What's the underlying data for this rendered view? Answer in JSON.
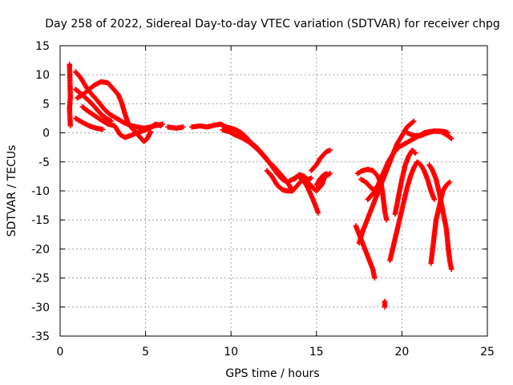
{
  "chart_data": {
    "type": "scatter",
    "title": "Day 258 of 2022, Sidereal Day-to-day VTEC variation (SDTVAR) for receiver chpg",
    "xlabel": "GPS time / hours",
    "ylabel": "SDTVAR / TECUs",
    "xlim": [
      0,
      25
    ],
    "ylim": [
      -35,
      15
    ],
    "xticks": [
      0,
      5,
      10,
      15,
      20,
      25
    ],
    "yticks": [
      15,
      10,
      5,
      0,
      -5,
      -10,
      -15,
      -20,
      -25,
      -30,
      -35
    ],
    "grid": true,
    "marker": "+",
    "color": "#ff0000",
    "series": [
      {
        "name": "s1",
        "points": [
          [
            0.55,
            11.8
          ],
          [
            0.6,
            6.2
          ],
          [
            0.55,
            4.2
          ],
          [
            0.6,
            1.2
          ]
        ]
      },
      {
        "name": "s2",
        "points": [
          [
            0.9,
            10.5
          ],
          [
            1.2,
            9.5
          ],
          [
            1.5,
            8
          ],
          [
            1.8,
            6.8
          ],
          [
            2.2,
            5.5
          ],
          [
            2.6,
            4
          ],
          [
            2.9,
            3.2
          ],
          [
            3.3,
            2.5
          ],
          [
            3.7,
            1.8
          ],
          [
            4.1,
            1.3
          ],
          [
            4.5,
            1.0
          ],
          [
            4.9,
            0.8
          ],
          [
            5.3,
            1.0
          ],
          [
            5.6,
            1.5
          ],
          [
            5.9,
            1.2
          ]
        ]
      },
      {
        "name": "s3",
        "points": [
          [
            0.9,
            7.5
          ],
          [
            1.2,
            6.8
          ],
          [
            1.5,
            6
          ],
          [
            1.8,
            5.2
          ],
          [
            2.1,
            4.2
          ],
          [
            2.4,
            3.2
          ],
          [
            2.7,
            2.5
          ],
          [
            3.0,
            2.0
          ]
        ]
      },
      {
        "name": "s4",
        "points": [
          [
            1.0,
            6.0
          ],
          [
            1.3,
            6.5
          ],
          [
            1.7,
            7.5
          ],
          [
            2.0,
            8.2
          ],
          [
            2.4,
            8.8
          ],
          [
            2.8,
            8.6
          ],
          [
            3.1,
            7.6
          ],
          [
            3.4,
            6.6
          ],
          [
            3.6,
            5.2
          ],
          [
            3.8,
            3.2
          ],
          [
            4.0,
            1.5
          ],
          [
            4.3,
            0.5
          ],
          [
            4.6,
            -0.5
          ],
          [
            4.9,
            -1.5
          ],
          [
            5.1,
            -1.0
          ],
          [
            5.3,
            0.2
          ]
        ]
      },
      {
        "name": "s5",
        "points": [
          [
            0.9,
            2.5
          ],
          [
            1.3,
            1.8
          ],
          [
            1.7,
            1.2
          ],
          [
            2.1,
            0.8
          ],
          [
            2.5,
            0.6
          ]
        ]
      },
      {
        "name": "s6",
        "points": [
          [
            1.3,
            4.5
          ],
          [
            1.6,
            3.8
          ],
          [
            2.0,
            3.0
          ],
          [
            2.4,
            2.2
          ],
          [
            2.8,
            1.5
          ],
          [
            3.2,
            1.2
          ],
          [
            3.5,
            -0.3
          ],
          [
            3.8,
            -0.8
          ],
          [
            4.1,
            -0.5
          ],
          [
            4.5,
            0.0
          ],
          [
            5.0,
            0.5
          ],
          [
            5.5,
            1.2
          ],
          [
            6.0,
            1.5
          ]
        ]
      },
      {
        "name": "s7",
        "points": [
          [
            6.3,
            1.0
          ],
          [
            6.8,
            0.8
          ],
          [
            7.2,
            1.0
          ]
        ]
      },
      {
        "name": "s8",
        "points": [
          [
            7.7,
            1.0
          ],
          [
            8.2,
            1.2
          ],
          [
            8.6,
            1.0
          ],
          [
            9.0,
            1.3
          ],
          [
            9.4,
            1.5
          ],
          [
            9.7,
            1.0
          ],
          [
            10.0,
            0.8
          ],
          [
            10.3,
            0.5
          ],
          [
            10.6,
            0.0
          ],
          [
            10.9,
            -0.8
          ],
          [
            11.2,
            -1.8
          ],
          [
            11.5,
            -2.5
          ],
          [
            11.8,
            -3.5
          ],
          [
            12.1,
            -4.5
          ],
          [
            12.4,
            -5.8
          ],
          [
            12.7,
            -7.0
          ],
          [
            13.0,
            -8.0
          ],
          [
            13.3,
            -8.5
          ],
          [
            13.6,
            -8.0
          ],
          [
            13.9,
            -7.5
          ],
          [
            14.2,
            -7.8
          ],
          [
            14.5,
            -8.0
          ],
          [
            14.7,
            -7.8
          ]
        ]
      },
      {
        "name": "s9",
        "points": [
          [
            9.5,
            0.5
          ],
          [
            9.9,
            0.2
          ],
          [
            10.2,
            -0.3
          ],
          [
            10.6,
            -0.8
          ],
          [
            11.0,
            -1.5
          ],
          [
            11.3,
            -2.2
          ],
          [
            11.6,
            -3.0
          ],
          [
            11.9,
            -4.0
          ],
          [
            12.2,
            -5.0
          ],
          [
            12.5,
            -5.8
          ],
          [
            12.8,
            -6.8
          ],
          [
            13.1,
            -7.8
          ],
          [
            13.4,
            -9.0
          ],
          [
            13.6,
            -10.0
          ]
        ]
      },
      {
        "name": "s10",
        "points": [
          [
            12.1,
            -6.5
          ],
          [
            12.4,
            -7.5
          ],
          [
            12.7,
            -9.0
          ],
          [
            13.0,
            -9.8
          ],
          [
            13.3,
            -10.0
          ],
          [
            13.6,
            -10.0
          ],
          [
            13.9,
            -9.0
          ],
          [
            14.2,
            -8.0
          ],
          [
            14.5,
            -9.5
          ],
          [
            14.8,
            -11.5
          ],
          [
            15.0,
            -13.0
          ],
          [
            15.1,
            -13.8
          ]
        ]
      },
      {
        "name": "s11",
        "points": [
          [
            13.7,
            -8.0
          ],
          [
            14.0,
            -7.2
          ],
          [
            14.3,
            -7.5
          ],
          [
            14.5,
            -8.5
          ],
          [
            14.8,
            -9.5
          ],
          [
            15.0,
            -10.0
          ],
          [
            15.3,
            -9.0
          ],
          [
            15.5,
            -7.5
          ],
          [
            15.7,
            -7.2
          ],
          [
            15.8,
            -7.0
          ]
        ]
      },
      {
        "name": "s12",
        "points": [
          [
            14.7,
            -6.5
          ],
          [
            15.0,
            -5.5
          ],
          [
            15.2,
            -4.5
          ],
          [
            15.4,
            -3.8
          ],
          [
            15.6,
            -3.2
          ],
          [
            15.8,
            -3.0
          ]
        ]
      },
      {
        "name": "s13",
        "points": [
          [
            15.0,
            -9.0
          ],
          [
            15.2,
            -8.0
          ],
          [
            15.4,
            -7.3
          ],
          [
            15.6,
            -7.0
          ]
        ]
      },
      {
        "name": "s14",
        "points": [
          [
            17.3,
            -16.0
          ],
          [
            17.5,
            -17.5
          ],
          [
            17.7,
            -19.0
          ],
          [
            17.9,
            -20.5
          ],
          [
            18.1,
            -22.0
          ],
          [
            18.3,
            -23.5
          ],
          [
            18.4,
            -25.0
          ]
        ]
      },
      {
        "name": "s15",
        "points": [
          [
            17.4,
            -7.0
          ],
          [
            17.7,
            -6.5
          ],
          [
            18.0,
            -6.3
          ],
          [
            18.3,
            -6.5
          ],
          [
            18.6,
            -7.5
          ],
          [
            18.8,
            -9.0
          ],
          [
            18.9,
            -11.0
          ],
          [
            19.0,
            -13.5
          ],
          [
            19.1,
            -15.0
          ]
        ]
      },
      {
        "name": "s16",
        "points": [
          [
            17.5,
            -19.0
          ],
          [
            17.7,
            -17.0
          ],
          [
            17.9,
            -15.5
          ],
          [
            18.1,
            -14.0
          ],
          [
            18.3,
            -12.5
          ],
          [
            18.5,
            -11.0
          ],
          [
            18.7,
            -9.5
          ],
          [
            18.9,
            -8.0
          ],
          [
            19.1,
            -6.5
          ],
          [
            19.3,
            -5.0
          ],
          [
            19.5,
            -3.5
          ],
          [
            19.7,
            -2.0
          ],
          [
            19.9,
            -1.0
          ],
          [
            20.1,
            0.0
          ],
          [
            20.3,
            1.0
          ],
          [
            20.5,
            1.5
          ],
          [
            20.7,
            2.0
          ]
        ]
      },
      {
        "name": "s17",
        "points": [
          [
            17.6,
            -8.0
          ],
          [
            17.9,
            -8.5
          ],
          [
            18.2,
            -9.5
          ],
          [
            18.5,
            -10.0
          ],
          [
            18.8,
            -9.5
          ]
        ]
      },
      {
        "name": "s18",
        "points": [
          [
            18.0,
            -11.5
          ],
          [
            18.3,
            -10.5
          ],
          [
            18.6,
            -9.0
          ],
          [
            18.9,
            -7.0
          ],
          [
            19.2,
            -5.0
          ],
          [
            19.5,
            -3.5
          ],
          [
            19.8,
            -2.5
          ],
          [
            20.1,
            -2.0
          ],
          [
            20.4,
            -1.5
          ],
          [
            20.7,
            -1.0
          ],
          [
            21.0,
            -0.5
          ],
          [
            21.3,
            0.0
          ],
          [
            21.6,
            0.2
          ],
          [
            21.9,
            0.3
          ],
          [
            22.2,
            0.3
          ],
          [
            22.5,
            0.2
          ],
          [
            22.7,
            0.0
          ]
        ]
      },
      {
        "name": "s19",
        "points": [
          [
            19.0,
            -29.0
          ],
          [
            19.0,
            -30.0
          ]
        ]
      },
      {
        "name": "s20",
        "points": [
          [
            19.3,
            -22.0
          ],
          [
            19.5,
            -19.5
          ],
          [
            19.7,
            -17.0
          ],
          [
            19.9,
            -14.5
          ],
          [
            20.1,
            -12.0
          ],
          [
            20.3,
            -9.5
          ],
          [
            20.5,
            -7.5
          ],
          [
            20.7,
            -6.0
          ],
          [
            20.9,
            -5.0
          ],
          [
            21.1,
            -5.5
          ],
          [
            21.3,
            -6.5
          ],
          [
            21.5,
            -8.0
          ],
          [
            21.7,
            -10.0
          ],
          [
            21.9,
            -11.5
          ]
        ]
      },
      {
        "name": "s21",
        "points": [
          [
            19.6,
            -14.0
          ],
          [
            19.8,
            -11.0
          ],
          [
            20.0,
            -8.0
          ],
          [
            20.2,
            -5.5
          ],
          [
            20.4,
            -4.0
          ],
          [
            20.6,
            -3.0
          ],
          [
            20.8,
            -3.5
          ]
        ]
      },
      {
        "name": "s22",
        "points": [
          [
            21.7,
            -22.5
          ],
          [
            21.8,
            -20.0
          ],
          [
            21.9,
            -17.5
          ],
          [
            22.0,
            -15.0
          ],
          [
            22.2,
            -12.5
          ],
          [
            22.4,
            -10.0
          ],
          [
            22.6,
            -9.0
          ],
          [
            22.8,
            -8.5
          ]
        ]
      },
      {
        "name": "s23",
        "points": [
          [
            21.6,
            -5.5
          ],
          [
            21.8,
            -6.5
          ],
          [
            22.0,
            -8.0
          ],
          [
            22.2,
            -10.5
          ],
          [
            22.4,
            -13.5
          ],
          [
            22.6,
            -16.5
          ],
          [
            22.7,
            -19.5
          ],
          [
            22.8,
            -22.0
          ],
          [
            22.9,
            -23.5
          ]
        ]
      },
      {
        "name": "s24",
        "points": [
          [
            20.3,
            0.0
          ],
          [
            20.7,
            -0.5
          ],
          [
            21.1,
            -0.5
          ],
          [
            21.5,
            0.0
          ],
          [
            21.9,
            0.3
          ],
          [
            22.3,
            0.2
          ],
          [
            22.7,
            -0.5
          ],
          [
            22.9,
            -1.0
          ]
        ]
      }
    ]
  }
}
